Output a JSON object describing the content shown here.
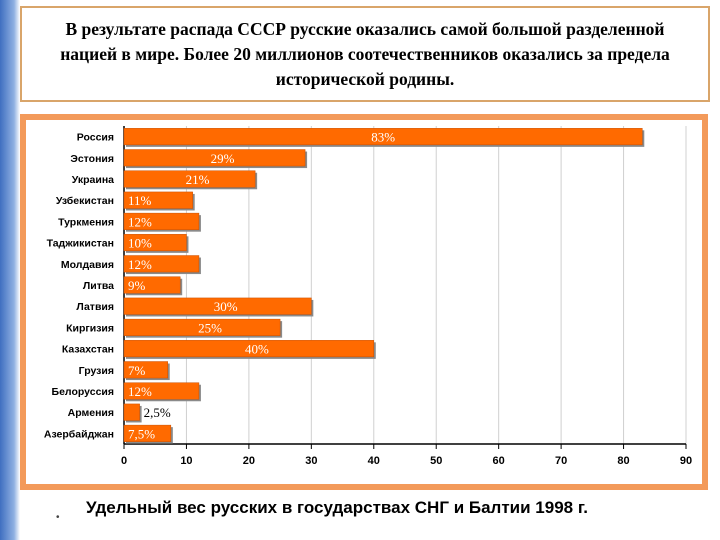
{
  "header": {
    "text": "В результате распада СССР русские оказались самой большой разделенной нацией в мире. Более 20 миллионов соотечественников оказались за предела исторической родины."
  },
  "caption": {
    "text": "Удельный вес русских в государствах СНГ и Балтии 1998 г."
  },
  "colors": {
    "bar": "#ff6a00",
    "frame": "#f39a5a",
    "label": "#ffffff",
    "grid": "#d0d0d0"
  },
  "chart_data": {
    "type": "bar",
    "orientation": "horizontal",
    "categories": [
      "Россия",
      "Эстония",
      "Украина",
      "Узбекистан",
      "Туркмения",
      "Таджикистан",
      "Молдавия",
      "Литва",
      "Латвия",
      "Киргизия",
      "Казахстан",
      "Грузия",
      "Белоруссия",
      "Армения",
      "Азербайджан"
    ],
    "values": [
      83,
      29,
      21,
      11,
      12,
      10,
      12,
      9,
      30,
      25,
      40,
      7,
      12,
      2.5,
      7.5
    ],
    "data_labels": [
      "83%",
      "29%",
      "21%",
      "11%",
      "12%",
      "10%",
      "12%",
      "9%",
      "30%",
      "25%",
      "40%",
      "7%",
      "12%",
      "2,5%",
      "7,5%"
    ],
    "x_ticks": [
      "0",
      "10",
      "20",
      "30",
      "40",
      "50",
      "60",
      "70",
      "80",
      "90"
    ],
    "xlim": [
      0,
      90
    ],
    "grid": true
  }
}
